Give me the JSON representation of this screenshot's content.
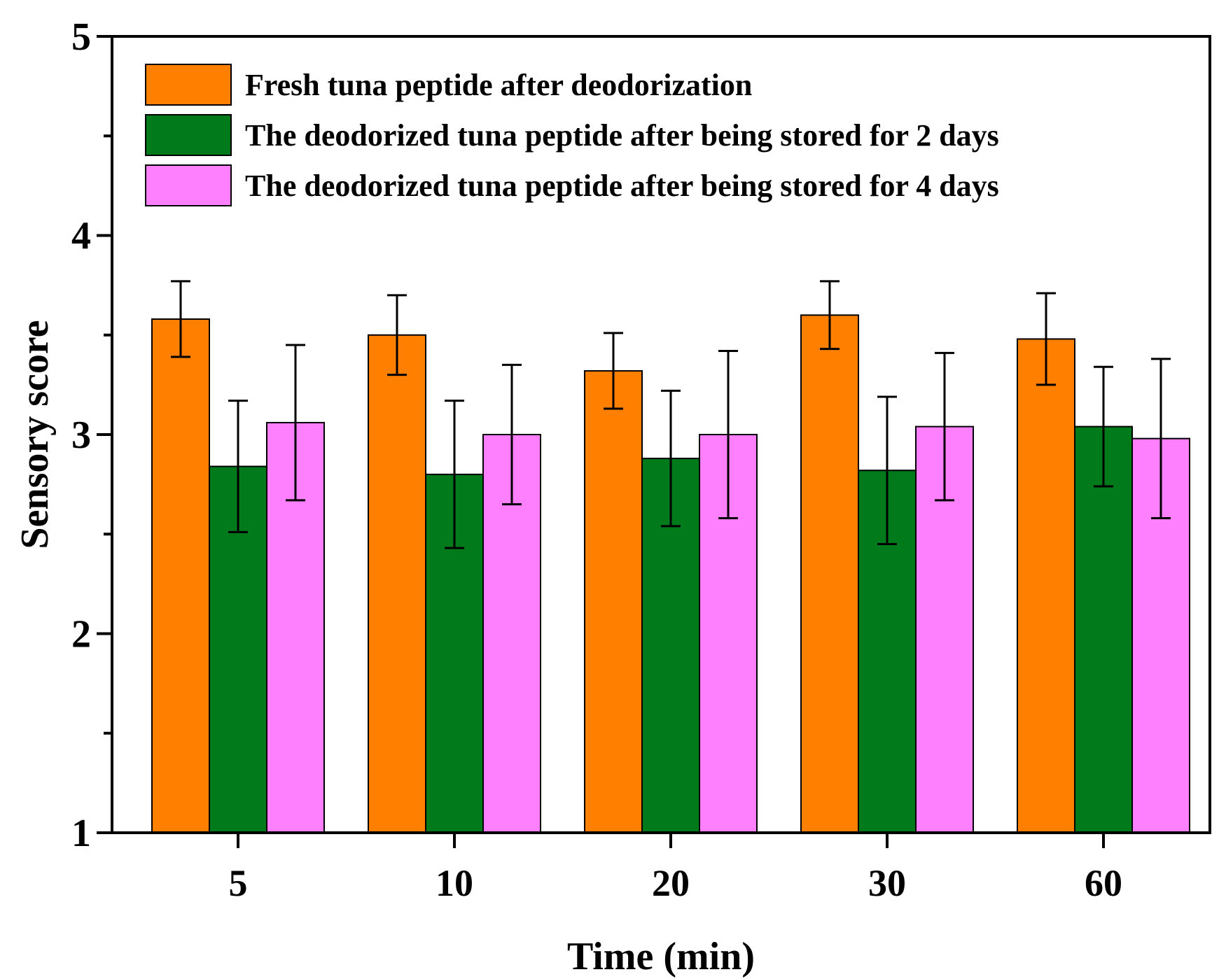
{
  "chart_data": {
    "type": "bar",
    "title": "",
    "xlabel": "Time (min)",
    "ylabel": "Sensory score",
    "ylim": [
      1,
      5
    ],
    "yticks": [
      1,
      2,
      3,
      4,
      5
    ],
    "categories": [
      "5",
      "10",
      "20",
      "30",
      "60"
    ],
    "legend_position": "top-left",
    "series": [
      {
        "name": "Fresh tuna peptide after deodorization",
        "color": "#FF8000",
        "values": [
          3.58,
          3.5,
          3.32,
          3.6,
          3.48
        ],
        "errors": [
          0.19,
          0.2,
          0.19,
          0.17,
          0.23
        ]
      },
      {
        "name": "The deodorized tuna peptide after being stored for 2 days",
        "color": "#007A1B",
        "values": [
          2.84,
          2.8,
          2.88,
          2.82,
          3.04
        ],
        "errors": [
          0.33,
          0.37,
          0.34,
          0.37,
          0.3
        ]
      },
      {
        "name": "The deodorized tuna peptide after being stored for 4 days",
        "color": "#FF80FF",
        "values": [
          3.06,
          3.0,
          3.0,
          3.04,
          2.98
        ],
        "errors": [
          0.39,
          0.35,
          0.42,
          0.37,
          0.4
        ]
      }
    ]
  }
}
